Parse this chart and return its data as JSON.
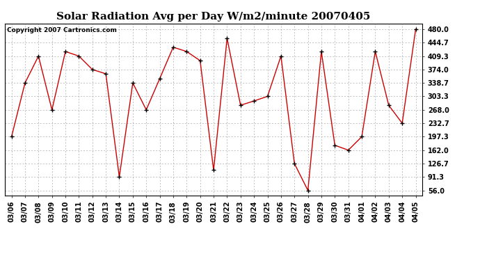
{
  "title": "Solar Radiation Avg per Day W/m2/minute 20070405",
  "copyright": "Copyright 2007 Cartronics.com",
  "line_color": "#cc0000",
  "marker_color": "#000000",
  "bg_color": "#ffffff",
  "grid_color": "#aaaaaa",
  "dates": [
    "03/06",
    "03/07",
    "03/08",
    "03/09",
    "03/10",
    "03/11",
    "03/12",
    "03/13",
    "03/14",
    "03/15",
    "03/16",
    "03/17",
    "03/18",
    "03/19",
    "03/20",
    "03/21",
    "03/22",
    "03/23",
    "03/24",
    "03/25",
    "03/26",
    "03/27",
    "03/28",
    "03/29",
    "03/30",
    "03/31",
    "04/01",
    "04/02",
    "04/03",
    "04/04",
    "04/05"
  ],
  "values": [
    197.3,
    338.7,
    409.3,
    268.0,
    421.3,
    409.3,
    374.0,
    362.7,
    91.3,
    338.7,
    268.0,
    350.0,
    432.7,
    421.3,
    397.3,
    109.3,
    456.0,
    280.0,
    291.3,
    303.3,
    409.3,
    126.7,
    56.0,
    421.3,
    174.7,
    162.0,
    197.3,
    421.3,
    280.0,
    232.7,
    480.0
  ],
  "yticks": [
    56.0,
    91.3,
    126.7,
    162.0,
    197.3,
    232.7,
    268.0,
    303.3,
    338.7,
    374.0,
    409.3,
    444.7,
    480.0
  ],
  "ylim": [
    42.0,
    495.0
  ],
  "title_fontsize": 11,
  "copyright_fontsize": 6.5,
  "tick_fontsize": 7
}
